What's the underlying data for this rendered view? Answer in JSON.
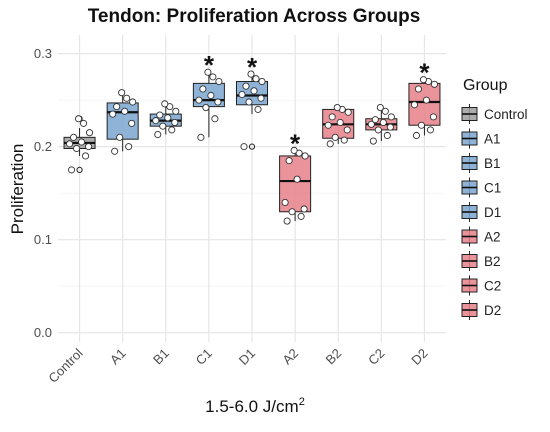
{
  "chart_data": {
    "type": "boxplot",
    "title": "Tendon: Proliferation Across Groups",
    "xlabel_main": "1.5-6.0 J/cm",
    "xlabel_sup": "2",
    "ylabel": "Proliferation",
    "ylim": [
      -0.01,
      0.32
    ],
    "yticks": [
      0.0,
      0.1,
      0.2,
      0.3
    ],
    "ytick_labels": [
      "0.0",
      "0.1",
      "0.2",
      "0.3"
    ],
    "legend": {
      "title": "Group",
      "placement": "right"
    },
    "colors": {
      "Control": "#9e9e9e",
      "blue": "#7aa6cf",
      "red": "#e8808a",
      "grid": "#e6e6e6",
      "point_fill": "#ffffff",
      "point_stroke": "#333333"
    },
    "groups": [
      {
        "name": "Control",
        "color_key": "Control",
        "q1": 0.198,
        "median": 0.204,
        "q3": 0.21,
        "lower_whisker": 0.19,
        "upper_whisker": 0.22,
        "outliers": [
          0.175,
          0.23
        ],
        "significant": false,
        "points": [
          0.175,
          0.19,
          0.198,
          0.2,
          0.203,
          0.205,
          0.21,
          0.215,
          0.225,
          0.23
        ]
      },
      {
        "name": "A1",
        "color_key": "blue",
        "q1": 0.208,
        "median": 0.237,
        "q3": 0.247,
        "lower_whisker": 0.195,
        "upper_whisker": 0.26,
        "outliers": [],
        "significant": false,
        "points": [
          0.195,
          0.2,
          0.21,
          0.225,
          0.235,
          0.238,
          0.243,
          0.248,
          0.252,
          0.258
        ]
      },
      {
        "name": "B1",
        "color_key": "blue",
        "q1": 0.222,
        "median": 0.228,
        "q3": 0.235,
        "lower_whisker": 0.213,
        "upper_whisker": 0.246,
        "outliers": [],
        "significant": false,
        "points": [
          0.213,
          0.218,
          0.222,
          0.226,
          0.228,
          0.231,
          0.234,
          0.238,
          0.243,
          0.246
        ]
      },
      {
        "name": "C1",
        "color_key": "blue",
        "q1": 0.243,
        "median": 0.25,
        "q3": 0.268,
        "lower_whisker": 0.21,
        "upper_whisker": 0.28,
        "outliers": [],
        "significant": true,
        "points": [
          0.21,
          0.23,
          0.242,
          0.248,
          0.25,
          0.255,
          0.262,
          0.27,
          0.275,
          0.28
        ]
      },
      {
        "name": "D1",
        "color_key": "blue",
        "q1": 0.245,
        "median": 0.255,
        "q3": 0.27,
        "lower_whisker": 0.235,
        "upper_whisker": 0.278,
        "outliers": [
          0.2
        ],
        "significant": true,
        "points": [
          0.2,
          0.24,
          0.248,
          0.252,
          0.256,
          0.26,
          0.265,
          0.27,
          0.273,
          0.278
        ]
      },
      {
        "name": "A2",
        "color_key": "red",
        "q1": 0.13,
        "median": 0.163,
        "q3": 0.19,
        "lower_whisker": 0.12,
        "upper_whisker": 0.196,
        "outliers": [],
        "significant": true,
        "points": [
          0.12,
          0.125,
          0.13,
          0.133,
          0.14,
          0.165,
          0.185,
          0.19,
          0.193,
          0.196
        ]
      },
      {
        "name": "B2",
        "color_key": "red",
        "q1": 0.209,
        "median": 0.224,
        "q3": 0.24,
        "lower_whisker": 0.203,
        "upper_whisker": 0.242,
        "outliers": [],
        "significant": false,
        "points": [
          0.203,
          0.207,
          0.21,
          0.218,
          0.223,
          0.226,
          0.232,
          0.237,
          0.24,
          0.242
        ]
      },
      {
        "name": "C2",
        "color_key": "red",
        "q1": 0.218,
        "median": 0.224,
        "q3": 0.23,
        "lower_whisker": 0.206,
        "upper_whisker": 0.242,
        "outliers": [],
        "significant": false,
        "points": [
          0.206,
          0.212,
          0.218,
          0.221,
          0.224,
          0.226,
          0.229,
          0.232,
          0.238,
          0.242
        ]
      },
      {
        "name": "D2",
        "color_key": "red",
        "q1": 0.223,
        "median": 0.248,
        "q3": 0.268,
        "lower_whisker": 0.212,
        "upper_whisker": 0.272,
        "outliers": [],
        "significant": true,
        "points": [
          0.212,
          0.218,
          0.223,
          0.232,
          0.245,
          0.25,
          0.262,
          0.267,
          0.27,
          0.272
        ]
      }
    ],
    "significance_marker": "*"
  }
}
